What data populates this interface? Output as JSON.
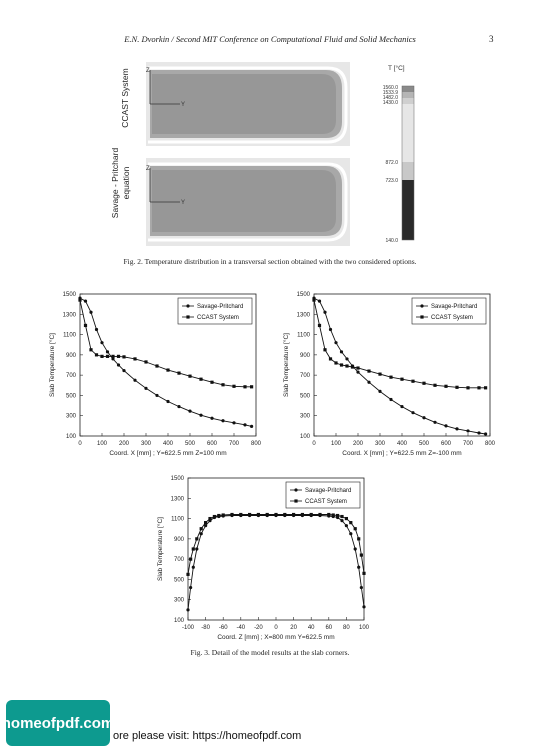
{
  "header": {
    "running_head": "E.N. Dvorkin / Second MIT Conference on Computational Fluid and Solid Mechanics",
    "page_number": "3"
  },
  "fig2": {
    "panel_top_label": "CCAST System",
    "panel_bottom_label": [
      "Savage - Pritchard",
      "equation"
    ],
    "axis_z": "Z",
    "axis_y": "Y",
    "colorbar_title": "T [°C]",
    "colorbar_ticks": [
      "1560.0",
      "1533.9",
      "1482.0",
      "1430.0",
      "872.0",
      "723.0",
      "140.0"
    ],
    "caption": "Fig. 2. Temperature distribution in a transversal section obtained with the two considered options."
  },
  "fig3": {
    "caption": "Fig. 3. Detail of the model results at the slab corners."
  },
  "chart_data": [
    {
      "type": "line",
      "ylabel": "Slab Temperature [°C]",
      "xlabel": "Coord. X [mm] ; Y=622.5 mm  Z=100 mm",
      "xlim": [
        0,
        800
      ],
      "ylim": [
        100,
        1500
      ],
      "xticks": [
        0,
        100,
        200,
        300,
        400,
        500,
        600,
        700,
        800
      ],
      "yticks": [
        100,
        300,
        500,
        700,
        900,
        1100,
        1300,
        1500
      ],
      "legend_position": "top-right",
      "x": [
        0,
        25,
        50,
        75,
        100,
        125,
        150,
        175,
        200,
        250,
        300,
        350,
        400,
        450,
        500,
        550,
        600,
        650,
        700,
        750,
        780
      ],
      "series": [
        {
          "name": "Savage-Pritchard",
          "marker": "circle",
          "values": [
            1460,
            1430,
            1320,
            1150,
            1020,
            930,
            860,
            800,
            745,
            650,
            570,
            500,
            440,
            390,
            345,
            305,
            275,
            250,
            230,
            210,
            195
          ]
        },
        {
          "name": "CCAST System",
          "marker": "square",
          "values": [
            1440,
            1190,
            950,
            900,
            885,
            885,
            885,
            885,
            880,
            860,
            830,
            790,
            750,
            720,
            690,
            660,
            630,
            605,
            590,
            585,
            585
          ]
        }
      ]
    },
    {
      "type": "line",
      "ylabel": "Slab Temperature [°C]",
      "xlabel": "Coord. X [mm] ; Y=622.5 mm  Z=-100 mm",
      "xlim": [
        0,
        800
      ],
      "ylim": [
        100,
        1500
      ],
      "xticks": [
        0,
        100,
        200,
        300,
        400,
        500,
        600,
        700,
        800
      ],
      "yticks": [
        100,
        300,
        500,
        700,
        900,
        1100,
        1300,
        1500
      ],
      "legend_position": "top-right",
      "x": [
        0,
        25,
        50,
        75,
        100,
        125,
        150,
        175,
        200,
        250,
        300,
        350,
        400,
        450,
        500,
        550,
        600,
        650,
        700,
        750,
        780
      ],
      "series": [
        {
          "name": "Savage-Pritchard",
          "marker": "circle",
          "values": [
            1460,
            1430,
            1320,
            1150,
            1020,
            930,
            860,
            790,
            730,
            630,
            540,
            460,
            390,
            330,
            280,
            235,
            200,
            170,
            150,
            130,
            120
          ]
        },
        {
          "name": "CCAST System",
          "marker": "square",
          "values": [
            1440,
            1190,
            950,
            860,
            820,
            800,
            790,
            780,
            770,
            740,
            710,
            680,
            660,
            640,
            620,
            600,
            590,
            580,
            575,
            575,
            575
          ]
        }
      ]
    },
    {
      "type": "line",
      "ylabel": "Slab Temperature [°C]",
      "xlabel": "Coord. Z [mm] ; X=800 mm Y=622.5 mm",
      "xlim": [
        -100,
        100
      ],
      "ylim": [
        100,
        1500
      ],
      "xticks": [
        -100,
        -80,
        -60,
        -40,
        -20,
        0,
        20,
        40,
        60,
        80,
        100
      ],
      "yticks": [
        100,
        300,
        500,
        700,
        900,
        1100,
        1300,
        1500
      ],
      "legend_position": "top-right",
      "x": [
        -100,
        -97,
        -94,
        -90,
        -85,
        -80,
        -75,
        -70,
        -65,
        -60,
        -50,
        -40,
        -30,
        -20,
        -10,
        0,
        10,
        20,
        30,
        40,
        50,
        60,
        65,
        70,
        75,
        80,
        85,
        90,
        94,
        97,
        100
      ],
      "series": [
        {
          "name": "Savage-Pritchard",
          "marker": "circle",
          "values": [
            200,
            420,
            620,
            800,
            950,
            1030,
            1080,
            1110,
            1120,
            1125,
            1130,
            1130,
            1130,
            1130,
            1130,
            1130,
            1130,
            1130,
            1130,
            1130,
            1130,
            1125,
            1120,
            1110,
            1080,
            1030,
            950,
            800,
            620,
            420,
            230
          ]
        },
        {
          "name": "CCAST System",
          "marker": "square",
          "values": [
            550,
            700,
            800,
            900,
            1000,
            1060,
            1100,
            1120,
            1130,
            1135,
            1140,
            1140,
            1140,
            1140,
            1140,
            1140,
            1140,
            1140,
            1140,
            1140,
            1140,
            1140,
            1135,
            1130,
            1120,
            1100,
            1060,
            1000,
            900,
            740,
            560
          ]
        }
      ]
    }
  ],
  "footer": {
    "logo_text": "homeofpdf.com",
    "visit_text": "ore please visit: https://homeofpdf.com"
  }
}
